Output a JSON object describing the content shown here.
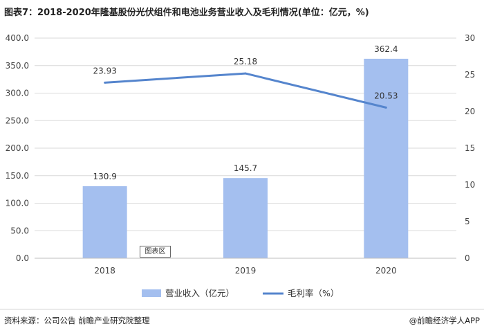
{
  "title": "图表7：2018-2020年隆基股份光伏组件和电池业务营业收入及毛利情况(单位：亿元，%)",
  "source": "资料来源：公司公告 前瞻产业研究院整理",
  "brand": "@前瞻经济学人APP",
  "chart_area_label": "图表区",
  "colors": {
    "bar": "#a4bfef",
    "line": "#5585cd",
    "grid": "#d9d9d9"
  },
  "chart_data": {
    "type": "bar",
    "categories": [
      "2018",
      "2019",
      "2020"
    ],
    "series": [
      {
        "name": "营业收入（亿元）",
        "type": "bar",
        "axis": "left",
        "values": [
          130.9,
          145.7,
          362.4
        ],
        "labels": [
          "130.9",
          "145.7",
          "362.4"
        ]
      },
      {
        "name": "毛利率（%）",
        "type": "line",
        "axis": "right",
        "values": [
          23.93,
          25.18,
          20.53
        ],
        "labels": [
          "23.93",
          "25.18",
          "20.53"
        ]
      }
    ],
    "y_left": {
      "lim": [
        0,
        400
      ],
      "ticks": [
        "0.0",
        "50.0",
        "100.0",
        "150.0",
        "200.0",
        "250.0",
        "300.0",
        "350.0",
        "400.0"
      ]
    },
    "y_right": {
      "lim": [
        0,
        30
      ],
      "ticks": [
        "0",
        "5",
        "10",
        "15",
        "20",
        "25",
        "30"
      ]
    },
    "grid": true,
    "legend_position": "bottom"
  }
}
